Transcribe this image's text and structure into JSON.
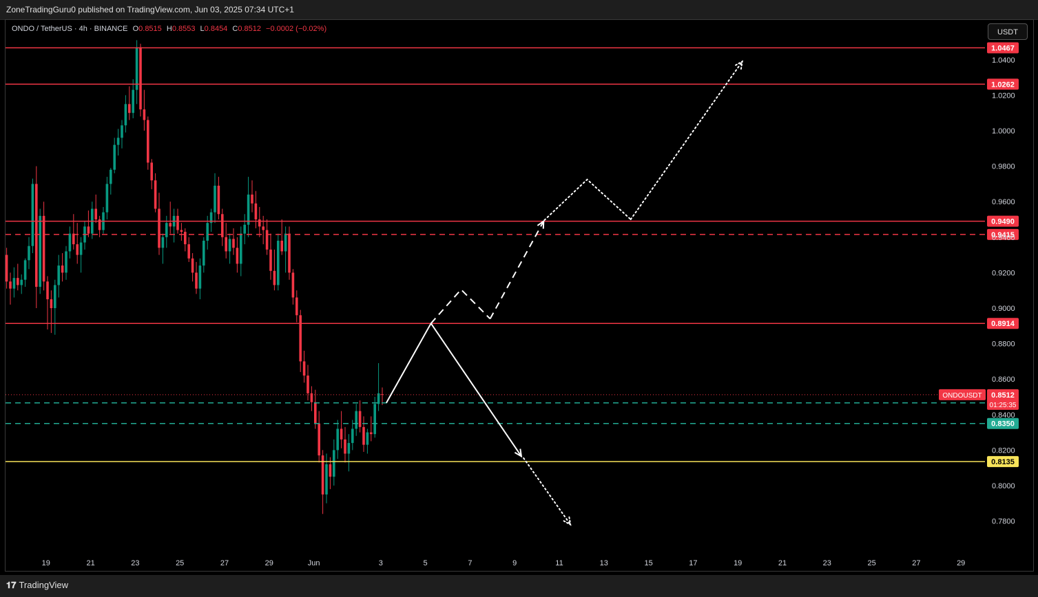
{
  "header": {
    "publish_text": "ZoneTradingGuru0 published on TradingView.com, Jun 03, 2025 07:34 UTC+1"
  },
  "legend": {
    "symbol": "ONDO / TetherUS · 4h · BINANCE",
    "open_label": "O",
    "open": "0.8515",
    "high_label": "H",
    "high": "0.8553",
    "low_label": "L",
    "low": "0.8454",
    "close_label": "C",
    "close": "0.8512",
    "change": "−0.0002 (−0.02%)"
  },
  "currency_button": "USDT",
  "footer": {
    "logo_text": "TradingView"
  },
  "colors": {
    "background": "#000000",
    "up": "#089981",
    "down": "#f23645",
    "level_red": "#f23645",
    "level_green": "#22ab94",
    "level_yellow": "#f7e35a",
    "projection": "#ffffff"
  },
  "chart_data": {
    "type": "candlestick",
    "symbol": "ONDOUSDT",
    "timeframe": "4h",
    "y_axis": {
      "ticks": [
        1.04,
        1.02,
        1.0,
        0.98,
        0.96,
        0.94,
        0.92,
        0.9,
        0.88,
        0.86,
        0.84,
        0.82,
        0.8,
        0.78
      ],
      "tick_labels": [
        "1.0400",
        "1.0200",
        "1.0000",
        "0.9800",
        "0.9600",
        "0.9400",
        "0.9200",
        "0.9000",
        "0.8800",
        "0.8600",
        "0.8400",
        "0.8200",
        "0.8000",
        "0.7800"
      ],
      "range": [
        0.768,
        1.053
      ]
    },
    "x_axis": {
      "tick_labels": [
        "19",
        "21",
        "23",
        "25",
        "27",
        "29",
        "Jun",
        "3",
        "5",
        "7",
        "9",
        "11",
        "13",
        "15",
        "17",
        "19",
        "21",
        "23",
        "25",
        "27",
        "29"
      ],
      "tick_days": [
        -13,
        -11,
        -9,
        -7,
        -5,
        -3,
        -1,
        2,
        4,
        6,
        8,
        10,
        12,
        14,
        16,
        18,
        20,
        22,
        24,
        26,
        28
      ]
    },
    "levels": [
      {
        "value": 1.0467,
        "label": "1.0467",
        "color": "#f23645",
        "style": "solid"
      },
      {
        "value": 1.0262,
        "label": "1.0262",
        "color": "#f23645",
        "style": "solid"
      },
      {
        "value": 0.949,
        "label": "0.9490",
        "color": "#f23645",
        "style": "solid"
      },
      {
        "value": 0.9415,
        "label": "0.9415",
        "color": "#f23645",
        "style": "dashed"
      },
      {
        "value": 0.8914,
        "label": "0.8914",
        "color": "#f23645",
        "style": "solid"
      },
      {
        "value": 0.8466,
        "label": "0.8466",
        "color": "#22ab94",
        "style": "dashed"
      },
      {
        "value": 0.835,
        "label": "0.8350",
        "color": "#22ab94",
        "style": "dashed"
      },
      {
        "value": 0.8135,
        "label": "0.8135",
        "color": "#f7e35a",
        "style": "solid"
      }
    ],
    "current_price": {
      "value": 0.8512,
      "label": "0.8512",
      "countdown": "01:25:35",
      "ticker_label": "ONDOUSDT"
    },
    "projections": [
      {
        "style": "solid",
        "arrow": false,
        "points": [
          [
            2.25,
            0.8466
          ],
          [
            4.25,
            0.8914
          ]
        ]
      },
      {
        "style": "solid",
        "arrow": true,
        "points": [
          [
            4.25,
            0.8914
          ],
          [
            8.3,
            0.8165
          ]
        ]
      },
      {
        "style": "dotted",
        "arrow": true,
        "points": [
          [
            8.4,
            0.8155
          ],
          [
            10.5,
            0.778
          ]
        ]
      },
      {
        "style": "dashed",
        "arrow": false,
        "points": [
          [
            4.25,
            0.8914
          ],
          [
            5.6,
            0.9105
          ],
          [
            6.9,
            0.894
          ]
        ]
      },
      {
        "style": "dashed",
        "arrow": true,
        "points": [
          [
            6.9,
            0.894
          ],
          [
            9.3,
            0.949
          ]
        ]
      },
      {
        "style": "dotted",
        "arrow": false,
        "points": [
          [
            9.2,
            0.948
          ],
          [
            11.25,
            0.9725
          ],
          [
            13.2,
            0.95
          ]
        ]
      },
      {
        "style": "dotted",
        "arrow": true,
        "points": [
          [
            13.2,
            0.95
          ],
          [
            18.2,
            1.039
          ]
        ]
      }
    ],
    "candles": [
      {
        "o": 0.93,
        "h": 0.934,
        "l": 0.911,
        "c": 0.915
      },
      {
        "o": 0.915,
        "h": 0.92,
        "l": 0.902,
        "c": 0.911
      },
      {
        "o": 0.911,
        "h": 0.923,
        "l": 0.906,
        "c": 0.917
      },
      {
        "o": 0.917,
        "h": 0.925,
        "l": 0.91,
        "c": 0.913
      },
      {
        "o": 0.913,
        "h": 0.919,
        "l": 0.908,
        "c": 0.916
      },
      {
        "o": 0.916,
        "h": 0.928,
        "l": 0.912,
        "c": 0.927
      },
      {
        "o": 0.927,
        "h": 0.94,
        "l": 0.922,
        "c": 0.935
      },
      {
        "o": 0.935,
        "h": 0.973,
        "l": 0.931,
        "c": 0.97
      },
      {
        "o": 0.97,
        "h": 0.98,
        "l": 0.9,
        "c": 0.912
      },
      {
        "o": 0.912,
        "h": 0.956,
        "l": 0.908,
        "c": 0.952
      },
      {
        "o": 0.952,
        "h": 0.96,
        "l": 0.91,
        "c": 0.915
      },
      {
        "o": 0.915,
        "h": 0.918,
        "l": 0.888,
        "c": 0.905
      },
      {
        "o": 0.905,
        "h": 0.91,
        "l": 0.886,
        "c": 0.9
      },
      {
        "o": 0.9,
        "h": 0.916,
        "l": 0.885,
        "c": 0.913
      },
      {
        "o": 0.913,
        "h": 0.93,
        "l": 0.906,
        "c": 0.924
      },
      {
        "o": 0.924,
        "h": 0.931,
        "l": 0.915,
        "c": 0.92
      },
      {
        "o": 0.92,
        "h": 0.935,
        "l": 0.916,
        "c": 0.932
      },
      {
        "o": 0.932,
        "h": 0.946,
        "l": 0.928,
        "c": 0.942
      },
      {
        "o": 0.942,
        "h": 0.953,
        "l": 0.933,
        "c": 0.936
      },
      {
        "o": 0.936,
        "h": 0.948,
        "l": 0.925,
        "c": 0.93
      },
      {
        "o": 0.93,
        "h": 0.94,
        "l": 0.92,
        "c": 0.937
      },
      {
        "o": 0.937,
        "h": 0.949,
        "l": 0.933,
        "c": 0.946
      },
      {
        "o": 0.946,
        "h": 0.955,
        "l": 0.94,
        "c": 0.942
      },
      {
        "o": 0.942,
        "h": 0.96,
        "l": 0.939,
        "c": 0.956
      },
      {
        "o": 0.956,
        "h": 0.964,
        "l": 0.948,
        "c": 0.95
      },
      {
        "o": 0.95,
        "h": 0.952,
        "l": 0.94,
        "c": 0.944
      },
      {
        "o": 0.944,
        "h": 0.957,
        "l": 0.942,
        "c": 0.954
      },
      {
        "o": 0.954,
        "h": 0.974,
        "l": 0.95,
        "c": 0.97
      },
      {
        "o": 0.97,
        "h": 0.979,
        "l": 0.964,
        "c": 0.978
      },
      {
        "o": 0.978,
        "h": 0.996,
        "l": 0.976,
        "c": 0.992
      },
      {
        "o": 0.992,
        "h": 1.001,
        "l": 0.986,
        "c": 0.996
      },
      {
        "o": 0.996,
        "h": 1.006,
        "l": 0.99,
        "c": 1.003
      },
      {
        "o": 1.003,
        "h": 1.02,
        "l": 0.999,
        "c": 1.015
      },
      {
        "o": 1.015,
        "h": 1.025,
        "l": 1.006,
        "c": 1.01
      },
      {
        "o": 1.01,
        "h": 1.029,
        "l": 1.007,
        "c": 1.023
      },
      {
        "o": 1.023,
        "h": 1.051,
        "l": 1.015,
        "c": 1.047
      },
      {
        "o": 1.047,
        "h": 1.049,
        "l": 1.008,
        "c": 1.012
      },
      {
        "o": 1.012,
        "h": 1.023,
        "l": 1.0,
        "c": 1.006
      },
      {
        "o": 1.006,
        "h": 1.008,
        "l": 0.978,
        "c": 0.982
      },
      {
        "o": 0.982,
        "h": 0.984,
        "l": 0.967,
        "c": 0.972
      },
      {
        "o": 0.972,
        "h": 0.976,
        "l": 0.954,
        "c": 0.956
      },
      {
        "o": 0.956,
        "h": 0.965,
        "l": 0.93,
        "c": 0.934
      },
      {
        "o": 0.934,
        "h": 0.942,
        "l": 0.925,
        "c": 0.94
      },
      {
        "o": 0.94,
        "h": 0.952,
        "l": 0.934,
        "c": 0.948
      },
      {
        "o": 0.948,
        "h": 0.96,
        "l": 0.942,
        "c": 0.946
      },
      {
        "o": 0.946,
        "h": 0.956,
        "l": 0.937,
        "c": 0.952
      },
      {
        "o": 0.952,
        "h": 0.956,
        "l": 0.942,
        "c": 0.944
      },
      {
        "o": 0.944,
        "h": 0.948,
        "l": 0.938,
        "c": 0.943
      },
      {
        "o": 0.943,
        "h": 0.945,
        "l": 0.932,
        "c": 0.936
      },
      {
        "o": 0.936,
        "h": 0.94,
        "l": 0.926,
        "c": 0.928
      },
      {
        "o": 0.928,
        "h": 0.931,
        "l": 0.915,
        "c": 0.92
      },
      {
        "o": 0.92,
        "h": 0.926,
        "l": 0.908,
        "c": 0.911
      },
      {
        "o": 0.911,
        "h": 0.928,
        "l": 0.905,
        "c": 0.924
      },
      {
        "o": 0.924,
        "h": 0.94,
        "l": 0.92,
        "c": 0.938
      },
      {
        "o": 0.938,
        "h": 0.952,
        "l": 0.933,
        "c": 0.948
      },
      {
        "o": 0.948,
        "h": 0.956,
        "l": 0.943,
        "c": 0.954
      },
      {
        "o": 0.954,
        "h": 0.976,
        "l": 0.948,
        "c": 0.969
      },
      {
        "o": 0.969,
        "h": 0.974,
        "l": 0.95,
        "c": 0.953
      },
      {
        "o": 0.953,
        "h": 0.956,
        "l": 0.935,
        "c": 0.94
      },
      {
        "o": 0.94,
        "h": 0.948,
        "l": 0.928,
        "c": 0.932
      },
      {
        "o": 0.932,
        "h": 0.942,
        "l": 0.925,
        "c": 0.939
      },
      {
        "o": 0.939,
        "h": 0.945,
        "l": 0.93,
        "c": 0.934
      },
      {
        "o": 0.934,
        "h": 0.94,
        "l": 0.92,
        "c": 0.925
      },
      {
        "o": 0.925,
        "h": 0.946,
        "l": 0.918,
        "c": 0.942
      },
      {
        "o": 0.942,
        "h": 0.953,
        "l": 0.936,
        "c": 0.947
      },
      {
        "o": 0.947,
        "h": 0.974,
        "l": 0.94,
        "c": 0.964
      },
      {
        "o": 0.964,
        "h": 0.972,
        "l": 0.954,
        "c": 0.959
      },
      {
        "o": 0.959,
        "h": 0.966,
        "l": 0.945,
        "c": 0.95
      },
      {
        "o": 0.95,
        "h": 0.957,
        "l": 0.94,
        "c": 0.946
      },
      {
        "o": 0.946,
        "h": 0.952,
        "l": 0.936,
        "c": 0.944
      },
      {
        "o": 0.944,
        "h": 0.95,
        "l": 0.93,
        "c": 0.933
      },
      {
        "o": 0.933,
        "h": 0.942,
        "l": 0.916,
        "c": 0.921
      },
      {
        "o": 0.921,
        "h": 0.933,
        "l": 0.91,
        "c": 0.913
      },
      {
        "o": 0.913,
        "h": 0.942,
        "l": 0.91,
        "c": 0.938
      },
      {
        "o": 0.938,
        "h": 0.95,
        "l": 0.93,
        "c": 0.932
      },
      {
        "o": 0.932,
        "h": 0.946,
        "l": 0.92,
        "c": 0.942
      },
      {
        "o": 0.942,
        "h": 0.946,
        "l": 0.916,
        "c": 0.92
      },
      {
        "o": 0.92,
        "h": 0.922,
        "l": 0.902,
        "c": 0.906
      },
      {
        "o": 0.906,
        "h": 0.91,
        "l": 0.892,
        "c": 0.896
      },
      {
        "o": 0.896,
        "h": 0.899,
        "l": 0.864,
        "c": 0.87
      },
      {
        "o": 0.87,
        "h": 0.876,
        "l": 0.858,
        "c": 0.862
      },
      {
        "o": 0.862,
        "h": 0.868,
        "l": 0.848,
        "c": 0.852
      },
      {
        "o": 0.852,
        "h": 0.856,
        "l": 0.842,
        "c": 0.847
      },
      {
        "o": 0.847,
        "h": 0.854,
        "l": 0.832,
        "c": 0.835
      },
      {
        "o": 0.835,
        "h": 0.842,
        "l": 0.813,
        "c": 0.817
      },
      {
        "o": 0.817,
        "h": 0.82,
        "l": 0.784,
        "c": 0.795
      },
      {
        "o": 0.795,
        "h": 0.818,
        "l": 0.79,
        "c": 0.812
      },
      {
        "o": 0.812,
        "h": 0.816,
        "l": 0.798,
        "c": 0.805
      },
      {
        "o": 0.805,
        "h": 0.826,
        "l": 0.8,
        "c": 0.82
      },
      {
        "o": 0.82,
        "h": 0.837,
        "l": 0.815,
        "c": 0.832
      },
      {
        "o": 0.832,
        "h": 0.842,
        "l": 0.821,
        "c": 0.826
      },
      {
        "o": 0.826,
        "h": 0.833,
        "l": 0.813,
        "c": 0.818
      },
      {
        "o": 0.818,
        "h": 0.829,
        "l": 0.808,
        "c": 0.824
      },
      {
        "o": 0.824,
        "h": 0.837,
        "l": 0.82,
        "c": 0.832
      },
      {
        "o": 0.832,
        "h": 0.846,
        "l": 0.828,
        "c": 0.842
      },
      {
        "o": 0.842,
        "h": 0.848,
        "l": 0.83,
        "c": 0.833
      },
      {
        "o": 0.833,
        "h": 0.839,
        "l": 0.819,
        "c": 0.823
      },
      {
        "o": 0.823,
        "h": 0.832,
        "l": 0.818,
        "c": 0.83
      },
      {
        "o": 0.83,
        "h": 0.839,
        "l": 0.825,
        "c": 0.829
      },
      {
        "o": 0.829,
        "h": 0.85,
        "l": 0.827,
        "c": 0.846
      },
      {
        "o": 0.846,
        "h": 0.869,
        "l": 0.842,
        "c": 0.852
      },
      {
        "o": 0.8515,
        "h": 0.8553,
        "l": 0.8454,
        "c": 0.8512
      }
    ]
  }
}
